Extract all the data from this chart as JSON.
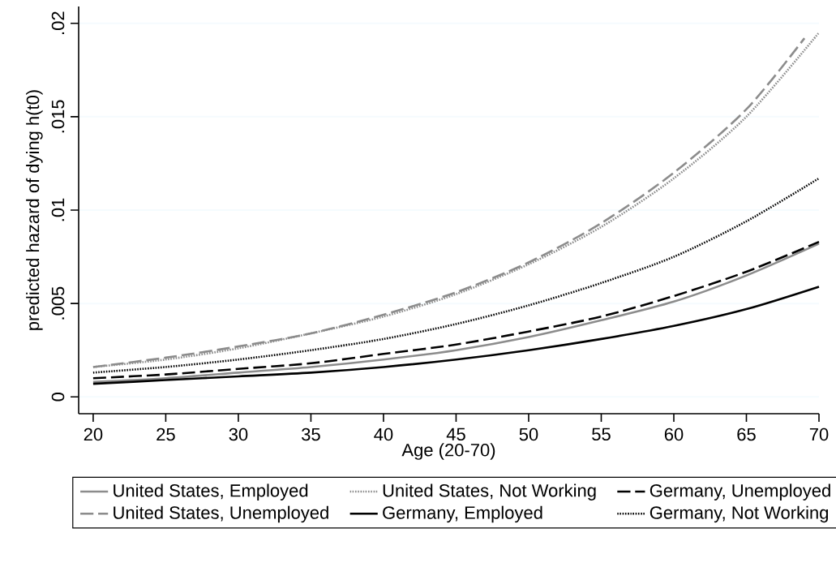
{
  "chart_data": {
    "type": "line",
    "xlabel": "Age (20-70)",
    "ylabel": "predicted hazard of dying h(t0)",
    "x": [
      20,
      25,
      30,
      35,
      40,
      45,
      50,
      55,
      60,
      65,
      70
    ],
    "series": [
      {
        "name": "United States, Employed",
        "color": "#8c8c8c",
        "line_style": "solid",
        "values": [
          0.0008,
          0.001,
          0.0013,
          0.0016,
          0.002,
          0.0025,
          0.0032,
          0.0041,
          0.0051,
          0.0065,
          0.0082
        ]
      },
      {
        "name": "United States, Unemployed",
        "color": "#8c8c8c",
        "line_style": "dashed",
        "x": [
          20,
          25,
          30,
          35,
          40,
          45,
          50,
          55,
          60,
          65,
          69
        ],
        "values": [
          0.0016,
          0.0021,
          0.0027,
          0.0034,
          0.0044,
          0.0056,
          0.0072,
          0.0093,
          0.012,
          0.0154,
          0.0192
        ]
      },
      {
        "name": "United States, Not Working",
        "color": "#8c8c8c",
        "line_style": "dotted",
        "values": [
          0.0016,
          0.002,
          0.0026,
          0.0034,
          0.0043,
          0.0055,
          0.0071,
          0.0091,
          0.0117,
          0.015,
          0.0195
        ]
      },
      {
        "name": "Germany, Employed",
        "color": "#000000",
        "line_style": "solid",
        "values": [
          0.0007,
          0.0009,
          0.0011,
          0.0013,
          0.0016,
          0.002,
          0.0025,
          0.0031,
          0.0038,
          0.0047,
          0.0059
        ]
      },
      {
        "name": "Germany, Unemployed",
        "color": "#000000",
        "line_style": "dashed",
        "values": [
          0.001,
          0.0012,
          0.0015,
          0.0018,
          0.0023,
          0.0028,
          0.0035,
          0.0043,
          0.0054,
          0.0067,
          0.0083
        ]
      },
      {
        "name": "Germany, Not Working",
        "color": "#000000",
        "line_style": "dotted",
        "values": [
          0.0013,
          0.0016,
          0.002,
          0.0025,
          0.0031,
          0.0039,
          0.0049,
          0.0061,
          0.0075,
          0.0094,
          0.0117
        ]
      }
    ],
    "xlim": [
      19,
      70
    ],
    "ylim": [
      -0.0009,
      0.0209
    ],
    "xticks": [
      20,
      25,
      30,
      35,
      40,
      45,
      50,
      55,
      60,
      65,
      70
    ],
    "yticks": [
      0,
      {
        "value": 0.005,
        "label": ".005"
      },
      {
        "value": 0.01,
        "label": ".01"
      },
      {
        "value": 0.015,
        "label": ".015"
      },
      {
        "value": 0.02,
        "label": ".02"
      }
    ],
    "grid": "y",
    "legend": "bottom"
  }
}
